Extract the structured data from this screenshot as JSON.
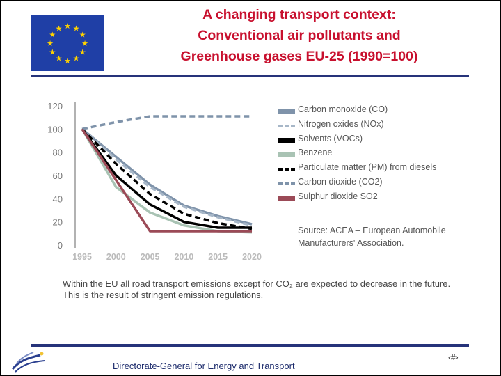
{
  "title": {
    "line1": "A changing transport context:",
    "line2": "Conventional air pollutants and",
    "line3": "Greenhouse gases EU-25 (1990=100)"
  },
  "source_note": "Source: ACEA – European Automobile Manufacturers' Association.",
  "caption": "Within the EU all road transport emissions except for CO₂ are expected to decrease in the future. This is the result of stringent emission regulations.",
  "footer": "Directorate-General for Energy and Transport",
  "page_number": "‹#›",
  "colors": {
    "title": "#c8102e",
    "flag": "#1f3fa6",
    "stars": "#ffd200",
    "rule": "#26337a"
  },
  "chart_data": {
    "type": "line",
    "x": [
      1995,
      2000,
      2005,
      2010,
      2015,
      2020
    ],
    "ylim": [
      0,
      120
    ],
    "xlim": [
      1995,
      2020
    ],
    "yticks": [
      0,
      20,
      40,
      60,
      80,
      100,
      120
    ],
    "xticks": [
      1995,
      2000,
      2005,
      2010,
      2015,
      2020
    ],
    "grid": false,
    "legend_position": "right",
    "series": [
      {
        "name": "Carbon monoxide (CO)",
        "color": "#7f93aa",
        "dash": "solid",
        "values": [
          100,
          76,
          52,
          34,
          25,
          18
        ]
      },
      {
        "name": "Nitrogen oxides (NOx)",
        "color": "#a7b7c8",
        "dash": "dashed",
        "values": [
          100,
          74,
          50,
          33,
          24,
          17
        ]
      },
      {
        "name": "Solvents (VOCs)",
        "color": "#000000",
        "dash": "solid",
        "values": [
          100,
          60,
          35,
          20,
          15,
          15
        ]
      },
      {
        "name": "Benzene",
        "color": "#a9c3b4",
        "dash": "solid",
        "values": [
          100,
          50,
          28,
          17,
          12,
          11
        ]
      },
      {
        "name": "Particulate matter (PM) from diesels",
        "color": "#000000",
        "dash": "dashed",
        "values": [
          100,
          70,
          44,
          27,
          19,
          14
        ]
      },
      {
        "name": "Carbon dioxide (CO2)",
        "color": "#7f93aa",
        "dash": "dashed",
        "values": [
          100,
          106,
          111,
          111,
          111,
          111
        ]
      },
      {
        "name": "Sulphur dioxide SO2",
        "color": "#9b4a57",
        "dash": "solid",
        "values": [
          100,
          56,
          12,
          12,
          12,
          12
        ]
      }
    ]
  }
}
